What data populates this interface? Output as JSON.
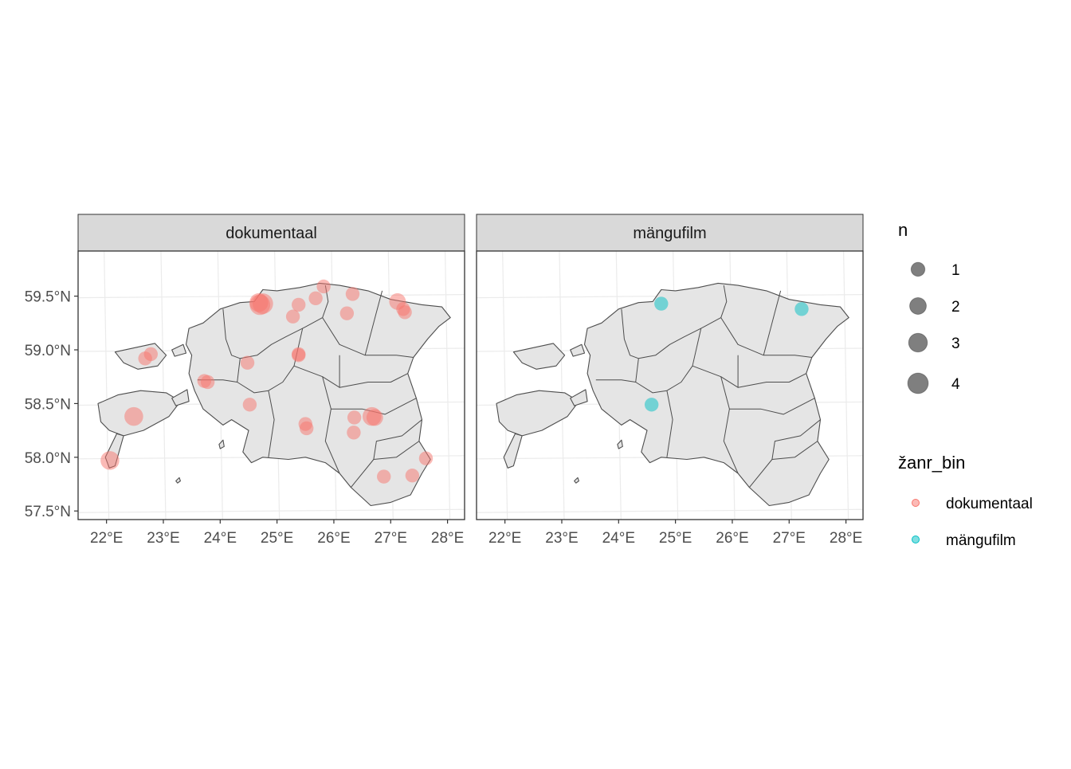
{
  "chart_data": {
    "type": "map",
    "panels": [
      {
        "title": "dokumentaal"
      },
      {
        "title": "mängufilm"
      }
    ],
    "x_ticks": [
      "22°E",
      "23°E",
      "24°E",
      "25°E",
      "26°E",
      "27°E",
      "28°E"
    ],
    "y_ticks": [
      "59.5°N",
      "59.0°N",
      "58.5°N",
      "58.0°N",
      "57.5°N"
    ],
    "x_tick_values": [
      22,
      23,
      24,
      25,
      26,
      27,
      28
    ],
    "y_tick_values": [
      59.5,
      59.0,
      58.5,
      58.0,
      57.5
    ],
    "xlim": [
      21.5,
      28.3
    ],
    "ylim": [
      57.42,
      59.92
    ],
    "legend_size": {
      "title": "n",
      "entries": [
        {
          "label": "1",
          "n": 1
        },
        {
          "label": "2",
          "n": 2
        },
        {
          "label": "3",
          "n": 3
        },
        {
          "label": "4",
          "n": 4
        }
      ]
    },
    "legend_color": {
      "title": "žanr_bin",
      "entries": [
        {
          "label": "dokumentaal",
          "color": "#F8766D"
        },
        {
          "label": "mängufilm",
          "color": "#00BFC4"
        }
      ]
    },
    "points": {
      "dokumentaal": [
        {
          "lon": 24.75,
          "lat": 59.43,
          "n": 4
        },
        {
          "lon": 24.7,
          "lat": 59.42,
          "n": 4
        },
        {
          "lon": 24.68,
          "lat": 59.44,
          "n": 3
        },
        {
          "lon": 25.38,
          "lat": 59.42,
          "n": 1
        },
        {
          "lon": 25.28,
          "lat": 59.31,
          "n": 1
        },
        {
          "lon": 25.82,
          "lat": 59.59,
          "n": 1
        },
        {
          "lon": 25.68,
          "lat": 59.48,
          "n": 1
        },
        {
          "lon": 26.33,
          "lat": 59.52,
          "n": 1
        },
        {
          "lon": 26.23,
          "lat": 59.34,
          "n": 1
        },
        {
          "lon": 27.12,
          "lat": 59.45,
          "n": 2
        },
        {
          "lon": 27.22,
          "lat": 59.38,
          "n": 1
        },
        {
          "lon": 27.25,
          "lat": 59.35,
          "n": 1
        },
        {
          "lon": 25.38,
          "lat": 58.96,
          "n": 1
        },
        {
          "lon": 25.38,
          "lat": 58.95,
          "n": 1
        },
        {
          "lon": 24.48,
          "lat": 58.88,
          "n": 1
        },
        {
          "lon": 22.78,
          "lat": 58.96,
          "n": 1
        },
        {
          "lon": 22.68,
          "lat": 58.92,
          "n": 1
        },
        {
          "lon": 23.72,
          "lat": 58.71,
          "n": 1
        },
        {
          "lon": 23.78,
          "lat": 58.7,
          "n": 1
        },
        {
          "lon": 24.52,
          "lat": 58.49,
          "n": 1
        },
        {
          "lon": 22.48,
          "lat": 58.38,
          "n": 3
        },
        {
          "lon": 22.06,
          "lat": 57.97,
          "n": 3
        },
        {
          "lon": 25.5,
          "lat": 58.31,
          "n": 1
        },
        {
          "lon": 25.52,
          "lat": 58.27,
          "n": 1
        },
        {
          "lon": 26.36,
          "lat": 58.37,
          "n": 1
        },
        {
          "lon": 26.67,
          "lat": 58.38,
          "n": 3
        },
        {
          "lon": 26.72,
          "lat": 58.37,
          "n": 2
        },
        {
          "lon": 26.35,
          "lat": 58.23,
          "n": 1
        },
        {
          "lon": 27.62,
          "lat": 57.99,
          "n": 1
        },
        {
          "lon": 27.38,
          "lat": 57.83,
          "n": 1
        },
        {
          "lon": 26.88,
          "lat": 57.82,
          "n": 1
        }
      ],
      "mängufilm": [
        {
          "lon": 24.75,
          "lat": 59.43,
          "n": 1
        },
        {
          "lon": 27.22,
          "lat": 59.38,
          "n": 1
        },
        {
          "lon": 24.58,
          "lat": 58.49,
          "n": 1
        }
      ]
    }
  }
}
